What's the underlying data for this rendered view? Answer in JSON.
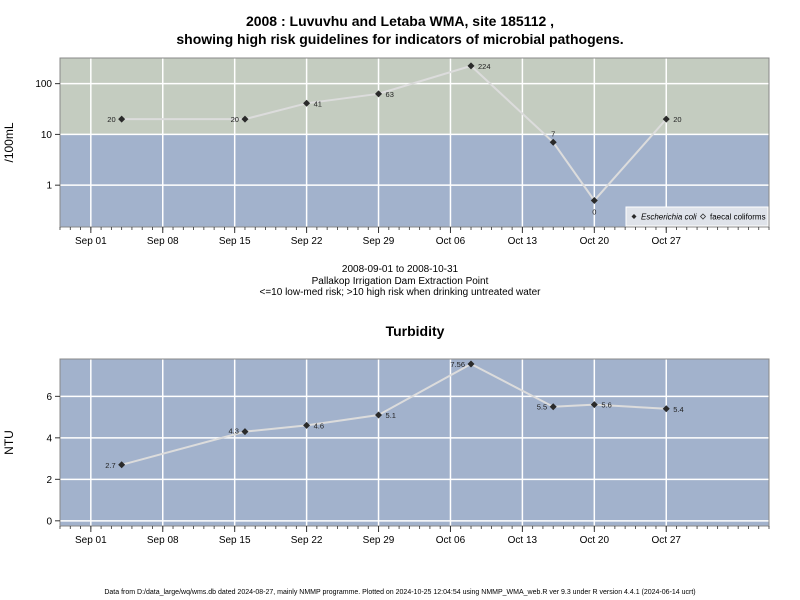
{
  "header": {
    "title_line1": "2008 : Luvuvhu and Letaba WMA, site 185112 ,",
    "title_line2": "showing high risk guidelines for indicators of microbial pathogens."
  },
  "caption": {
    "date_range": "2008-09-01 to 2008-10-31",
    "site_name": "Pallakop Irrigation Dam Extraction Point",
    "risk_note": "<=10 low-med risk; >10 high risk when drinking untreated water"
  },
  "footer": {
    "text": "Data from D:/data_large/wq/wms.db dated 2024-08-27, mainly NMMP programme. Plotted on 2024-10-25 12:04:54 using NMMP_WMA_web.R ver 9.3 under R version 4.4.1 (2024-06-14 ucrt)"
  },
  "colors": {
    "high_risk_band": "#c4ccc0",
    "low_risk_band": "#a2b2cc",
    "grid": "#ffffff",
    "line": "#dcdcdc",
    "point": "#2a2a2a"
  },
  "chart_data": [
    {
      "type": "line",
      "title": "",
      "ylabel": "/100mL",
      "y_scale": "log",
      "y_ticks": [
        1,
        10,
        100
      ],
      "y_tick_labels": [
        "1",
        "10",
        "100"
      ],
      "ylim": [
        0.15,
        320
      ],
      "xlim": [
        "2008-08-29",
        "2008-11-06"
      ],
      "x_ticks": [
        "2008-09-01",
        "2008-09-08",
        "2008-09-15",
        "2008-09-22",
        "2008-09-29",
        "2008-10-06",
        "2008-10-13",
        "2008-10-20",
        "2008-10-27"
      ],
      "x_tick_labels": [
        "Sep 01",
        "Sep 08",
        "Sep 15",
        "Sep 22",
        "Sep 29",
        "Oct 06",
        "Oct 13",
        "Oct 20",
        "Oct 27"
      ],
      "risk_threshold": 10,
      "grid": true,
      "legend_position": "bottom-right",
      "legend": [
        "Escherichia coli",
        "faecal coliforms"
      ],
      "series": [
        {
          "name": "Escherichia coli",
          "x": [
            "2008-09-04",
            "2008-09-16",
            "2008-09-22",
            "2008-09-29",
            "2008-10-08",
            "2008-10-16",
            "2008-10-20",
            "2008-10-27"
          ],
          "y": [
            20,
            20,
            41,
            63,
            224,
            7,
            0.5,
            20
          ],
          "labels": [
            "20",
            "20",
            "41",
            "63",
            "224",
            "7",
            "0",
            "20"
          ]
        }
      ]
    },
    {
      "type": "line",
      "title": "Turbidity",
      "ylabel": "NTU",
      "y_scale": "linear",
      "y_ticks": [
        0,
        2,
        4,
        6
      ],
      "y_tick_labels": [
        "0",
        "2",
        "4",
        "6"
      ],
      "ylim": [
        -0.25,
        7.8
      ],
      "xlim": [
        "2008-08-29",
        "2008-11-06"
      ],
      "x_ticks": [
        "2008-09-01",
        "2008-09-08",
        "2008-09-15",
        "2008-09-22",
        "2008-09-29",
        "2008-10-06",
        "2008-10-13",
        "2008-10-20",
        "2008-10-27"
      ],
      "x_tick_labels": [
        "Sep 01",
        "Sep 08",
        "Sep 15",
        "Sep 22",
        "Sep 29",
        "Oct 06",
        "Oct 13",
        "Oct 20",
        "Oct 27"
      ],
      "grid": true,
      "series": [
        {
          "x": [
            "2008-09-04",
            "2008-09-16",
            "2008-09-22",
            "2008-09-29",
            "2008-10-08",
            "2008-10-16",
            "2008-10-20",
            "2008-10-27"
          ],
          "y": [
            2.7,
            4.3,
            4.6,
            5.1,
            7.56,
            5.5,
            5.6,
            5.4
          ],
          "labels": [
            "2.7",
            "4.3",
            "4.6",
            "5.1",
            "7.56",
            "5.5",
            "5.6",
            "5.4"
          ]
        }
      ]
    }
  ]
}
